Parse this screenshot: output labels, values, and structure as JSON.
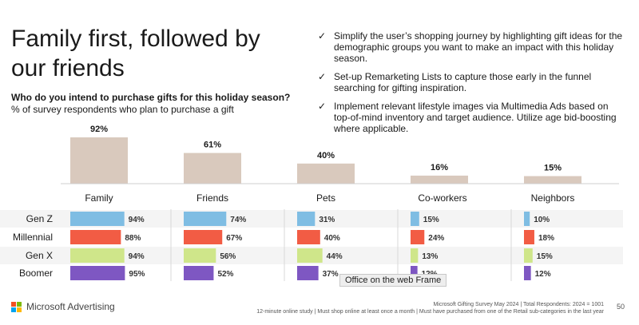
{
  "title": "Family first, followed by our friends",
  "question": "Who do you intend to purchase gifts for this holiday season?",
  "subquestion": "% of survey respondents who plan to purchase a gift",
  "bullets": [
    "Simplify the user’s shopping journey by highlighting gift ideas for the demographic groups you want to make an impact with this holiday season.",
    "Set-up Remarketing Lists to capture those early in the funnel searching for gifting inspiration.",
    "Implement relevant lifestyle images via Multimedia Ads based on top-of-mind inventory and target audience. Utilize age bid-boosting where applicable."
  ],
  "check_icon": "✓",
  "chart_data": [
    {
      "type": "bar",
      "categories": [
        "Family",
        "Friends",
        "Pets",
        "Co-workers",
        "Neighbors"
      ],
      "values": [
        92,
        61,
        40,
        16,
        15
      ],
      "value_suffix": "%",
      "ylim": [
        0,
        100
      ],
      "color": "#d9c9bd"
    },
    {
      "type": "bar",
      "orientation": "horizontal",
      "categories": [
        "Family",
        "Friends",
        "Pets",
        "Co-workers",
        "Neighbors"
      ],
      "value_suffix": "%",
      "series": [
        {
          "name": "Gen Z",
          "color": "#7fbde3",
          "values": [
            94,
            74,
            31,
            15,
            10
          ]
        },
        {
          "name": "Millennial",
          "color": "#f25c44",
          "values": [
            88,
            67,
            40,
            24,
            18
          ]
        },
        {
          "name": "Gen X",
          "color": "#cfe68a",
          "values": [
            94,
            56,
            44,
            13,
            15
          ]
        },
        {
          "name": "Boomer",
          "color": "#7e57c2",
          "values": [
            95,
            52,
            37,
            12,
            12
          ]
        }
      ]
    }
  ],
  "footer": {
    "brand": "Microsoft Advertising",
    "logo_colors": [
      "#f25022",
      "#7fba00",
      "#00a4ef",
      "#ffb900"
    ],
    "source_line1": "Microsoft Gifting Survey May 2024 | Total Respondents: 2024 = 1001",
    "source_line2": "12-minute online study | Must shop online at least once a month | Must have purchased from one of the Retail sub-categories in the last year",
    "page_number": "50"
  },
  "tooltip": "Office on the web Frame"
}
